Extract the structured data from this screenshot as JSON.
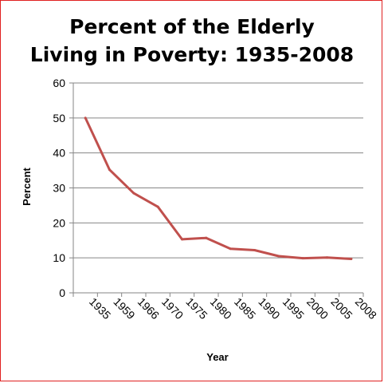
{
  "chart_data": {
    "type": "line",
    "title_lines": [
      "Percent of the Elderly",
      "Living in Poverty: 1935-2008"
    ],
    "xlabel": "Year",
    "ylabel": "Percent",
    "categories": [
      "1935",
      "1959",
      "1966",
      "1970",
      "1975",
      "1980",
      "1985",
      "1990",
      "1995",
      "2000",
      "2005",
      "2008"
    ],
    "series": [
      {
        "values": [
          50,
          35.2,
          28.5,
          24.6,
          15.3,
          15.7,
          12.6,
          12.2,
          10.5,
          9.9,
          10.1,
          9.7
        ]
      }
    ],
    "ylim": [
      0,
      60
    ],
    "yticks": [
      0,
      10,
      20,
      30,
      40,
      50,
      60
    ],
    "grid": true,
    "legend": "none",
    "colors": {
      "line": "#c0504d",
      "grid": "#868686",
      "frame": "#e02020"
    }
  }
}
